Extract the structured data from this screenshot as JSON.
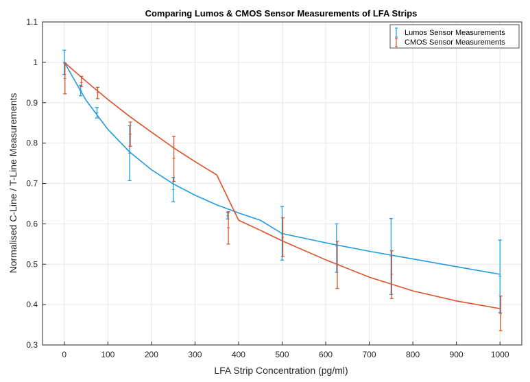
{
  "chart_data": {
    "type": "scatter",
    "title": "Comparing Lumos & CMOS Sensor Measurements of LFA Strips",
    "xlabel": "LFA Strip Concentration (pg/ml)",
    "ylabel": "Normalised C-Line / T-Line Measurements",
    "xlim": [
      -50,
      1050
    ],
    "ylim": [
      0.3,
      1.1
    ],
    "xticks": [
      0,
      100,
      200,
      300,
      400,
      500,
      600,
      700,
      800,
      900,
      1000
    ],
    "yticks": [
      0.3,
      0.4,
      0.5,
      0.6,
      0.7,
      0.8,
      0.9,
      1,
      1.1
    ],
    "grid": true,
    "legend_position": "top-right",
    "series": [
      {
        "name": "Lumos Sensor Measurements",
        "color": "#1f9be0",
        "x": [
          0,
          37.5,
          75,
          150,
          250,
          375,
          500,
          625,
          750,
          1000
        ],
        "y": [
          1.0,
          0.93,
          0.875,
          0.775,
          0.685,
          0.62,
          0.575,
          0.545,
          0.52,
          0.47
        ],
        "err_low": [
          0.03,
          0.013,
          0.013,
          0.068,
          0.03,
          0.008,
          0.065,
          0.065,
          0.095,
          0.09
        ],
        "err_high": [
          0.03,
          0.013,
          0.013,
          0.068,
          0.03,
          0.008,
          0.068,
          0.055,
          0.093,
          0.09
        ],
        "fit": [
          [
            0,
            1.0
          ],
          [
            50,
            0.906
          ],
          [
            100,
            0.834
          ],
          [
            150,
            0.778
          ],
          [
            200,
            0.734
          ],
          [
            250,
            0.699
          ],
          [
            300,
            0.671
          ],
          [
            350,
            0.647
          ],
          [
            400,
            0.627
          ],
          [
            450,
            0.609
          ],
          [
            500,
            0.576
          ],
          [
            600,
            0.553
          ],
          [
            700,
            0.532
          ],
          [
            800,
            0.513
          ],
          [
            900,
            0.494
          ],
          [
            1000,
            0.475
          ]
        ]
      },
      {
        "name": "CMOS Sensor Measurements",
        "color": "#dc5228",
        "x": [
          0,
          37.5,
          75,
          150,
          250,
          375,
          500,
          625,
          750,
          1000
        ],
        "y": [
          0.96,
          0.95,
          0.925,
          0.822,
          0.762,
          0.59,
          0.567,
          0.5,
          0.475,
          0.378
        ],
        "err_low": [
          0.038,
          0.01,
          0.015,
          0.03,
          0.057,
          0.04,
          0.048,
          0.06,
          0.06,
          0.043
        ],
        "err_high": [
          0.038,
          0.015,
          0.013,
          0.03,
          0.055,
          0.04,
          0.048,
          0.057,
          0.058,
          0.043
        ],
        "fit": [
          [
            0,
            1.0
          ],
          [
            50,
            0.953
          ],
          [
            100,
            0.908
          ],
          [
            150,
            0.866
          ],
          [
            200,
            0.827
          ],
          [
            250,
            0.789
          ],
          [
            300,
            0.754
          ],
          [
            350,
            0.721
          ],
          [
            400,
            0.609
          ],
          [
            450,
            0.584
          ],
          [
            500,
            0.558
          ],
          [
            600,
            0.511
          ],
          [
            700,
            0.468
          ],
          [
            800,
            0.434
          ],
          [
            900,
            0.409
          ],
          [
            1000,
            0.39
          ]
        ]
      }
    ]
  }
}
